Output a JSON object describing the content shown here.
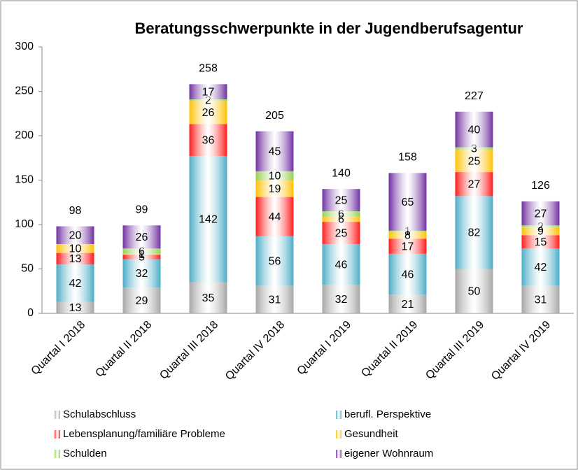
{
  "chart_data": {
    "type": "stacked_bar",
    "title": "Beratungsschwerpunkte in der Jugendberufsagentur",
    "categories": [
      "Quartal I 2018",
      "Quartal II 2018",
      "Quartal III 2018",
      "Quartal IV 2018",
      "Quartal I 2019",
      "Quartal II 2019",
      "Quartal III 2019",
      "Quartal IV 2019"
    ],
    "series": [
      {
        "name": "Schulabschluss",
        "color": "#a6a6a6",
        "values": [
          13,
          29,
          35,
          31,
          32,
          21,
          50,
          31
        ]
      },
      {
        "name": "berufl. Perspektive",
        "color": "#4bacc6",
        "values": [
          42,
          32,
          142,
          56,
          46,
          46,
          82,
          42
        ]
      },
      {
        "name": "Lebensplanung/familiäre Probleme",
        "color": "#ff1a1a",
        "values": [
          13,
          5,
          36,
          44,
          25,
          17,
          27,
          15
        ]
      },
      {
        "name": "Gesundheit",
        "color": "#ffc000",
        "values": [
          10,
          1,
          26,
          19,
          6,
          8,
          25,
          9
        ]
      },
      {
        "name": "Schulden",
        "color": "#92d050",
        "values": [
          null,
          6,
          2,
          10,
          6,
          1,
          3,
          2
        ]
      },
      {
        "name": "eigener Wohnraum",
        "color": "#7030a0",
        "values": [
          20,
          26,
          17,
          45,
          25,
          65,
          40,
          27
        ]
      }
    ],
    "totals": [
      98,
      99,
      258,
      205,
      140,
      158,
      227,
      126
    ],
    "ylim": [
      0,
      300
    ],
    "yticks": [
      0,
      50,
      100,
      150,
      200,
      250,
      300
    ],
    "grid": false,
    "legend": "bottom"
  }
}
